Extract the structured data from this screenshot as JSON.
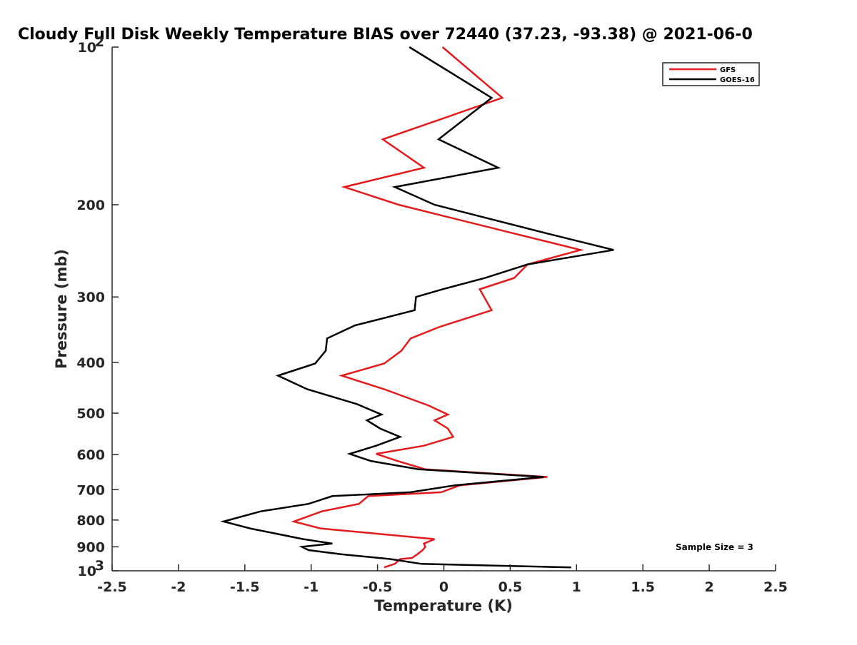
{
  "chart_data": {
    "type": "line",
    "title": "Cloudy Full Disk Weekly Temperature BIAS over 72440 (37.23, -93.38) @ 2021-06-0",
    "xlabel": "Temperature (K)",
    "ylabel": "Pressure (mb)",
    "xlim": [
      -2.5,
      2.5
    ],
    "ylim": [
      1000,
      100
    ],
    "y_scale": "log",
    "grid": false,
    "legend_position": "top-right",
    "x_ticks": [
      "-2.5",
      "-2",
      "-1.5",
      "-1",
      "-0.5",
      "0",
      "0.5",
      "1",
      "1.5",
      "2",
      "2.5"
    ],
    "y_ticks": [
      {
        "base": "10",
        "exp": "2"
      },
      {
        "base": "200",
        "exp": ""
      },
      {
        "base": "300",
        "exp": ""
      },
      {
        "base": "400",
        "exp": ""
      },
      {
        "base": "500",
        "exp": ""
      },
      {
        "base": "600",
        "exp": ""
      },
      {
        "base": "700",
        "exp": ""
      },
      {
        "base": "800",
        "exp": ""
      },
      {
        "base": "900",
        "exp": ""
      },
      {
        "base": "10",
        "exp": "3"
      }
    ],
    "annotation": "Sample Size = 3",
    "series": [
      {
        "name": "GFS",
        "color": "#e41a1c",
        "points": [
          [
            -0.01,
            100
          ],
          [
            0.44,
            125
          ],
          [
            -0.46,
            150
          ],
          [
            -0.15,
            170
          ],
          [
            -0.75,
            185
          ],
          [
            -0.34,
            200
          ],
          [
            0.53,
            227
          ],
          [
            1.03,
            244
          ],
          [
            0.63,
            260
          ],
          [
            0.53,
            276
          ],
          [
            0.27,
            290
          ],
          [
            0.36,
            318
          ],
          [
            -0.03,
            342
          ],
          [
            -0.25,
            360
          ],
          [
            -0.32,
            380
          ],
          [
            -0.45,
            402
          ],
          [
            -0.77,
            424
          ],
          [
            -0.45,
            450
          ],
          [
            -0.12,
            483
          ],
          [
            0.03,
            503
          ],
          [
            -0.07,
            516
          ],
          [
            0.03,
            535
          ],
          [
            0.07,
            555
          ],
          [
            -0.15,
            577
          ],
          [
            -0.51,
            598
          ],
          [
            -0.35,
            617
          ],
          [
            -0.14,
            640
          ],
          [
            0.78,
            662
          ],
          [
            0.12,
            687
          ],
          [
            -0.02,
            708
          ],
          [
            -0.57,
            720
          ],
          [
            -0.64,
            745
          ],
          [
            -0.92,
            770
          ],
          [
            -1.13,
            805
          ],
          [
            -0.93,
            830
          ],
          [
            -0.07,
            870
          ],
          [
            -0.15,
            887
          ],
          [
            -0.14,
            900
          ],
          [
            -0.16,
            913
          ],
          [
            -0.2,
            930
          ],
          [
            -0.24,
            945
          ],
          [
            -0.33,
            950
          ],
          [
            -0.37,
            970
          ],
          [
            -0.45,
            985
          ]
        ]
      },
      {
        "name": "GOES-16",
        "color": "#000000",
        "points": [
          [
            -0.26,
            100
          ],
          [
            0.36,
            125
          ],
          [
            -0.04,
            150
          ],
          [
            0.41,
            170
          ],
          [
            -0.37,
            185
          ],
          [
            -0.07,
            200
          ],
          [
            0.78,
            227
          ],
          [
            1.28,
            244
          ],
          [
            0.63,
            260
          ],
          [
            0.31,
            276
          ],
          [
            -0.01,
            290
          ],
          [
            -0.21,
            300
          ],
          [
            -0.22,
            318
          ],
          [
            -0.67,
            340
          ],
          [
            -0.88,
            360
          ],
          [
            -0.89,
            380
          ],
          [
            -0.97,
            402
          ],
          [
            -1.25,
            424
          ],
          [
            -1.03,
            450
          ],
          [
            -0.66,
            480
          ],
          [
            -0.47,
            503
          ],
          [
            -0.58,
            516
          ],
          [
            -0.48,
            535
          ],
          [
            -0.33,
            555
          ],
          [
            -0.51,
            577
          ],
          [
            -0.71,
            598
          ],
          [
            -0.55,
            617
          ],
          [
            -0.19,
            640
          ],
          [
            0.75,
            662
          ],
          [
            0.08,
            687
          ],
          [
            -0.25,
            708
          ],
          [
            -0.84,
            720
          ],
          [
            -1.02,
            745
          ],
          [
            -1.38,
            770
          ],
          [
            -1.66,
            805
          ],
          [
            -1.46,
            830
          ],
          [
            -1.06,
            870
          ],
          [
            -0.84,
            887
          ],
          [
            -1.07,
            900
          ],
          [
            -1.02,
            913
          ],
          [
            -0.77,
            930
          ],
          [
            -0.4,
            950
          ],
          [
            -0.17,
            970
          ],
          [
            0.96,
            985
          ]
        ]
      }
    ]
  }
}
